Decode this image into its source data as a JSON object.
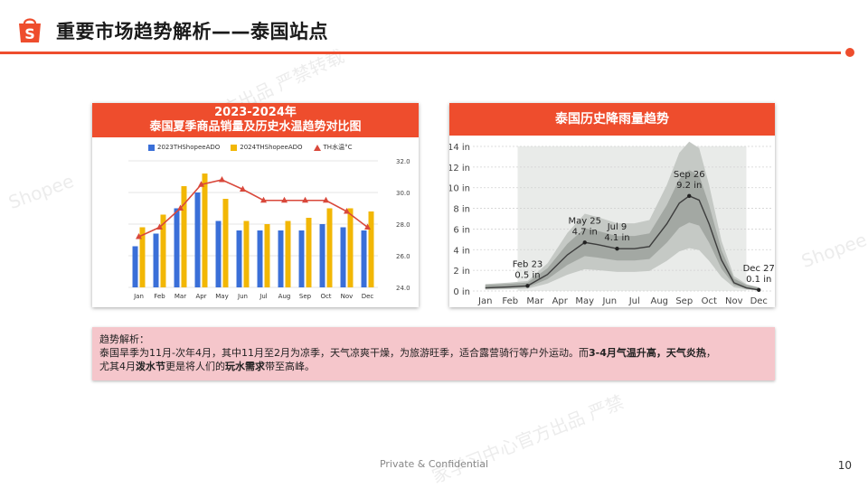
{
  "header": {
    "title": "重要市场趋势解析——泰国站点",
    "logo_letter": "S"
  },
  "accent_color": "#ee4d2d",
  "watermarks": [
    "Shopee",
    "官方出品 严禁转载",
    "Shopee",
    "家学习中心官方出品 严禁"
  ],
  "chart_data": [
    {
      "type": "bar",
      "title_line1": "2023-2024年",
      "title_line2": "泰国夏季商品销量及历史水温趋势对比图",
      "categories": [
        "Jan",
        "Feb",
        "Mar",
        "Apr",
        "May",
        "Jun",
        "Jul",
        "Aug",
        "Sep",
        "Oct",
        "Nov",
        "Dec"
      ],
      "series": [
        {
          "name": "2023THShopeeADO",
          "color": "#3a6fd8",
          "values": [
            13,
            17,
            25,
            30,
            21,
            18,
            18,
            18,
            18,
            20,
            19,
            18
          ]
        },
        {
          "name": "2024THShopeeADO",
          "color": "#f2b705",
          "values": [
            19,
            23,
            32,
            36,
            28,
            21,
            20,
            21,
            22,
            25,
            25,
            24
          ]
        },
        {
          "name": "TH水温°C",
          "color": "#d9483b",
          "axis": "right",
          "values": [
            27.2,
            27.8,
            29.0,
            30.5,
            30.8,
            30.2,
            29.5,
            29.5,
            29.5,
            29.5,
            28.8,
            27.8
          ]
        }
      ],
      "y2lim": [
        24.0,
        32.0
      ],
      "y2ticks": [
        "32.0",
        "30.0",
        "28.0",
        "26.0",
        "24.0"
      ],
      "grid": true,
      "legend_position": "top"
    },
    {
      "type": "area",
      "title": "泰国历史降雨量趋势",
      "categories": [
        "Jan",
        "Feb",
        "Mar",
        "Apr",
        "May",
        "Jun",
        "Jul",
        "Aug",
        "Sep",
        "Oct",
        "Nov",
        "Dec"
      ],
      "yticks": [
        "14 in",
        "12 in",
        "10 in",
        "8 in",
        "6 in",
        "4 in",
        "2 in",
        "0 in"
      ],
      "ylim": [
        0,
        14
      ],
      "x": [
        0,
        1,
        1.7,
        2.5,
        3.3,
        4.0,
        4.5,
        5.3,
        6.0,
        6.6,
        7.3,
        7.8,
        8.2,
        8.6,
        9.0,
        9.5,
        10.0,
        10.5,
        11.0
      ],
      "median": [
        0.3,
        0.4,
        0.5,
        1.6,
        3.5,
        4.7,
        4.5,
        4.1,
        4.1,
        4.3,
        6.5,
        8.5,
        9.2,
        8.8,
        6.5,
        3.0,
        0.8,
        0.3,
        0.1
      ],
      "annotations": [
        {
          "label": "Feb 23",
          "value": "0.5 in",
          "x": 1.7,
          "y": 0.5
        },
        {
          "label": "May 25",
          "value": "4.7 in",
          "x": 4.0,
          "y": 4.7
        },
        {
          "label": "Jul 9",
          "value": "4.1 in",
          "x": 5.3,
          "y": 4.1
        },
        {
          "label": "Sep 26",
          "value": "9.2 in",
          "x": 8.2,
          "y": 9.2
        },
        {
          "label": "Dec 27",
          "value": "0.1 in",
          "x": 11.0,
          "y": 0.1
        }
      ],
      "grid": true
    }
  ],
  "note": {
    "heading": "趋势解析：",
    "line2_a": "泰国旱季为11月-次年4月，其中11月至2月为凉季，天气凉爽干燥，为旅游旺季，适合露营骑行等户外运动。而",
    "line2_b": "3-4月气温升高，天气炎热",
    "line2_c": "，",
    "line3_a": "尤其4月",
    "line3_b": "泼水节",
    "line3_c": "更是将人们的",
    "line3_d": "玩水需求",
    "line3_e": "带至高峰。"
  },
  "footer": {
    "text": "Private & Confidential",
    "page": "10"
  }
}
